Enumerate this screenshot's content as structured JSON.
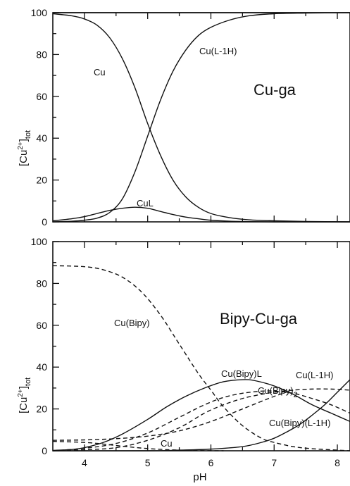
{
  "chart_data": [
    {
      "type": "line",
      "title": "Cu-ga",
      "xlabel": "",
      "ylabel": "[Cu2+]tot",
      "ylabel_parts": {
        "main": "[Cu",
        "sup": "2+",
        "close": "]",
        "sub": "tot"
      },
      "xlim": [
        3.5,
        8.2
      ],
      "ylim": [
        0,
        100
      ],
      "y_ticks": [
        "0",
        "20",
        "40",
        "60",
        "80",
        "100"
      ],
      "series": [
        {
          "name": "Cu",
          "style": "solid",
          "x": [
            3.5,
            3.8,
            4.0,
            4.2,
            4.4,
            4.6,
            4.8,
            5.0,
            5.2,
            5.4,
            5.6,
            5.8,
            6.0,
            6.3,
            6.6,
            7.0,
            7.5,
            8.2
          ],
          "y": [
            99.5,
            98.5,
            97,
            94,
            88,
            78,
            64,
            47,
            32,
            20,
            12,
            7,
            4,
            2,
            1,
            0.5,
            0.2,
            0
          ]
        },
        {
          "name": "Cu(L-1H)",
          "style": "solid",
          "x": [
            3.5,
            3.8,
            4.0,
            4.2,
            4.4,
            4.6,
            4.8,
            5.0,
            5.2,
            5.4,
            5.6,
            5.8,
            6.0,
            6.3,
            6.6,
            7.0,
            7.5,
            8.2
          ],
          "y": [
            0,
            0.3,
            0.8,
            1.8,
            4.5,
            11,
            24,
            41,
            58,
            72,
            82,
            89,
            93,
            96.5,
            98.5,
            99.5,
            99.8,
            100
          ]
        },
        {
          "name": "CuL",
          "style": "solid",
          "x": [
            3.5,
            3.8,
            4.0,
            4.2,
            4.4,
            4.6,
            4.8,
            5.0,
            5.2,
            5.4,
            5.6,
            5.8,
            6.0,
            6.3,
            6.6,
            7.0,
            7.5,
            8.2
          ],
          "y": [
            0.5,
            1.5,
            2.5,
            4,
            5.5,
            6.5,
            7,
            6.5,
            5,
            3.5,
            2.3,
            1.5,
            0.8,
            0.3,
            0.1,
            0,
            0,
            0
          ]
        }
      ],
      "upper_line": {
        "style": "solid",
        "x": [
          3.5,
          8.2
        ],
        "y": [
          100,
          100
        ]
      }
    },
    {
      "type": "line",
      "title": "Bipy-Cu-ga",
      "xlabel": "pH",
      "ylabel": "[Cu2+]tot",
      "ylabel_parts": {
        "main": "[Cu",
        "sup": "2+",
        "close": "]",
        "sub": "tot"
      },
      "xlim": [
        3.5,
        8.2
      ],
      "ylim": [
        0,
        100
      ],
      "x_ticks": [
        "4",
        "5",
        "6",
        "7",
        "8"
      ],
      "y_ticks": [
        "0",
        "20",
        "40",
        "60",
        "80",
        "100"
      ],
      "series": [
        {
          "name": "Cu(Bipy)",
          "style": "dashed",
          "x": [
            3.5,
            4.0,
            4.3,
            4.6,
            4.9,
            5.2,
            5.5,
            5.8,
            6.0,
            6.2,
            6.5,
            6.8,
            7.0,
            7.3,
            7.6,
            8.2
          ],
          "y": [
            88.5,
            88,
            86.5,
            83,
            76,
            65,
            51,
            37,
            29,
            21,
            12,
            6,
            4,
            2,
            1,
            0
          ]
        },
        {
          "name": "Cu(Bipy)L",
          "style": "solid",
          "x": [
            3.5,
            3.8,
            4.0,
            4.3,
            4.6,
            5.0,
            5.3,
            5.6,
            5.9,
            6.2,
            6.5,
            6.7,
            7.0,
            7.3,
            7.6,
            7.9,
            8.2
          ],
          "y": [
            0.2,
            0.6,
            1.5,
            4,
            8,
            15,
            21,
            26,
            30,
            33,
            34,
            33.5,
            31,
            27,
            22,
            18,
            14
          ]
        },
        {
          "name": "Cu(Bipy)2",
          "style": "dashed",
          "x": [
            3.5,
            4.0,
            4.5,
            5.0,
            5.5,
            5.9,
            6.2,
            6.5,
            6.8,
            7.0,
            7.3,
            7.6,
            7.9,
            8.2
          ],
          "y": [
            0,
            1.2,
            3.5,
            8.5,
            16,
            22,
            25.5,
            27.5,
            28.5,
            28.5,
            27.5,
            25,
            22,
            18
          ]
        },
        {
          "name": "Cu(L-1H)",
          "style": "dashed",
          "x": [
            3.5,
            4.0,
            4.5,
            5.0,
            5.5,
            5.9,
            6.2,
            6.5,
            6.8,
            7.0,
            7.3,
            7.6,
            7.9,
            8.2
          ],
          "y": [
            0,
            0.5,
            1.5,
            5,
            11,
            18,
            22,
            25,
            27,
            28,
            29,
            29.5,
            29.5,
            29
          ]
        },
        {
          "name": "Cu",
          "style": "dashed",
          "x": [
            3.5,
            4.0,
            4.3,
            4.6,
            4.9,
            5.2,
            5.5,
            5.8,
            6.2
          ],
          "y": [
            4.5,
            4,
            3.2,
            2.2,
            1.3,
            0.7,
            0.3,
            0.1,
            0
          ]
        },
        {
          "name": "Cu(Bipy)(L-1H)",
          "style": "solid",
          "x": [
            3.5,
            5.0,
            5.5,
            6.0,
            6.5,
            6.8,
            7.0,
            7.2,
            7.4,
            7.6,
            7.8,
            8.0,
            8.2
          ],
          "y": [
            0,
            0,
            0.3,
            0.8,
            2,
            4,
            6,
            9,
            12.5,
            17,
            22,
            28,
            34
          ]
        },
        {
          "name": "",
          "style": "dashed",
          "x": [
            3.5,
            4.0,
            4.5,
            5.0,
            5.5,
            6.0,
            6.5,
            7.0,
            7.3
          ],
          "y": [
            5,
            5.2,
            5.8,
            7,
            9.5,
            14,
            20,
            26,
            29
          ]
        }
      ]
    }
  ],
  "labels": {
    "top_title": "Cu-ga",
    "bottom_title": "Bipy-Cu-ga",
    "xaxis": "pH",
    "top": {
      "cu": "Cu",
      "cul1h": "Cu(L-1H)",
      "cul": "CuL"
    },
    "bottom": {
      "cubipy": "Cu(Bipy)",
      "cubipyl": "Cu(Bipy)L",
      "cul1h": "Cu(L-1H)",
      "cubipy2_main": "Cu(Bipy)",
      "cubipy2_sub": "2",
      "cu": "Cu",
      "cubipyl1h": "Cu(Bipy)(L-1H)"
    }
  }
}
